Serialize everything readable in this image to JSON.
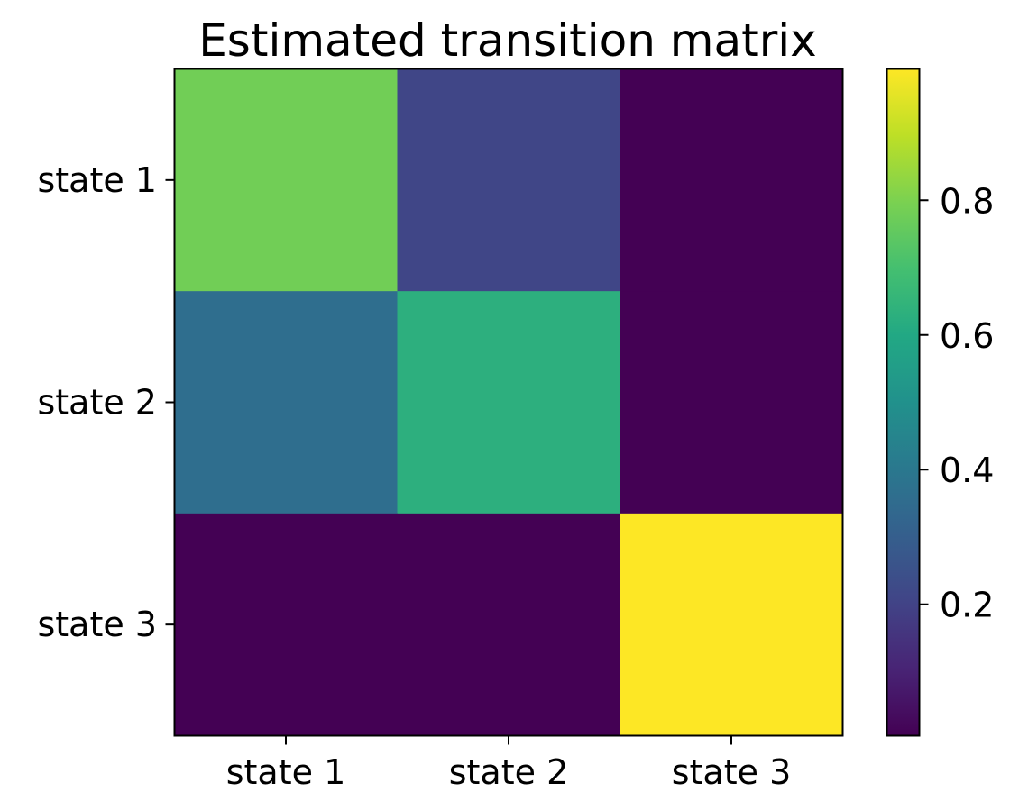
{
  "chart_data": {
    "type": "heatmap",
    "title": "Estimated transition matrix",
    "row_labels": [
      "state 1",
      "state 2",
      "state 3"
    ],
    "col_labels": [
      "state 1",
      "state 2",
      "state 3"
    ],
    "values": [
      [
        0.78,
        0.21,
        0.005
      ],
      [
        0.36,
        0.63,
        0.005
      ],
      [
        0.005,
        0.005,
        0.995
      ]
    ],
    "colormap": "viridis",
    "color_range": [
      0.005,
      0.995
    ],
    "colorbar_ticks": [
      0.2,
      0.4,
      0.6,
      0.8
    ],
    "colorbar_tick_labels": [
      "0.2",
      "0.4",
      "0.6",
      "0.8"
    ],
    "xlabel": "",
    "ylabel": "",
    "grid": false
  }
}
